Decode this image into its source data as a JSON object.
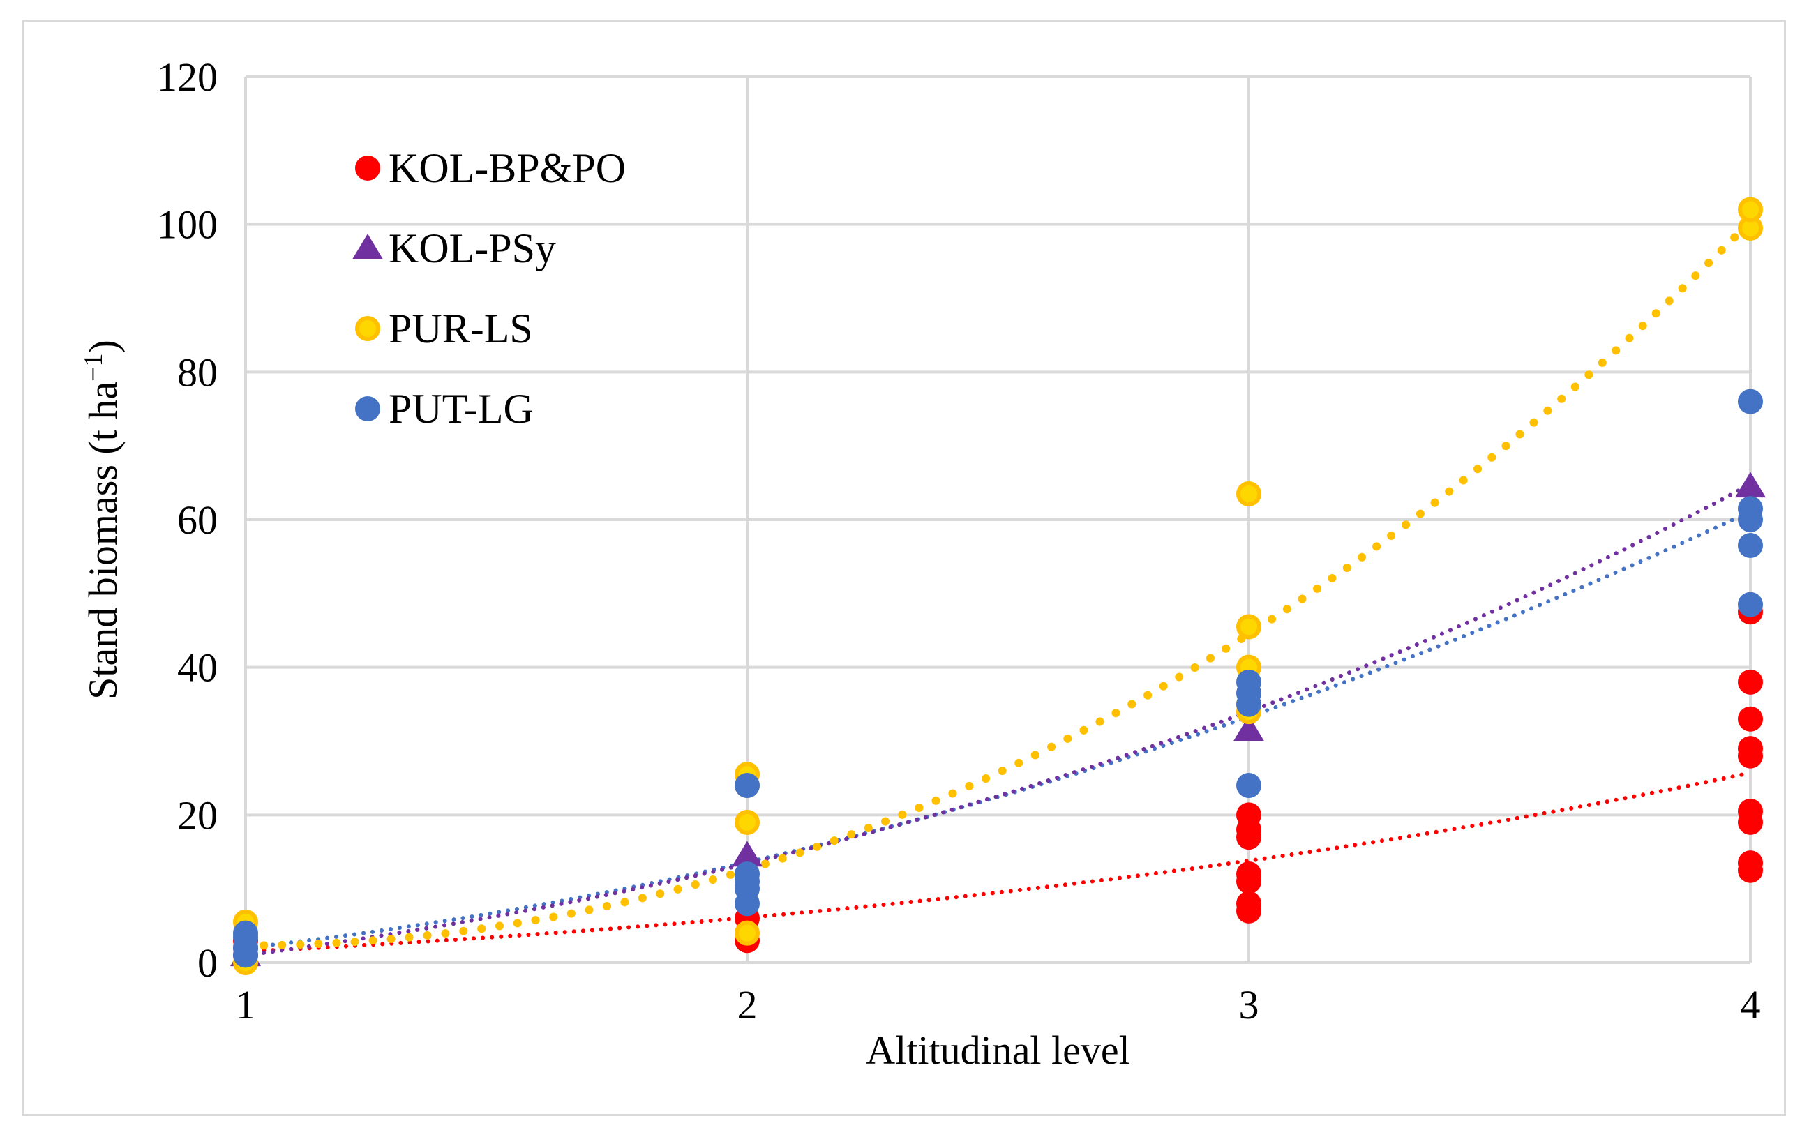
{
  "chart_data": {
    "type": "scatter",
    "title": "",
    "xlabel": "Altitudinal level",
    "ylabel_main": "Stand biomass (t ha",
    "ylabel_sup": "−1",
    "ylabel_close": ")",
    "xlim": [
      1,
      4
    ],
    "ylim": [
      0,
      120
    ],
    "xticks": [
      1,
      2,
      3,
      4
    ],
    "yticks": [
      0,
      20,
      40,
      60,
      80,
      100,
      120
    ],
    "grid": true,
    "legend_position": "top-left",
    "series": [
      {
        "name": "KOL-BP&PO",
        "marker": "circle",
        "color": "#ff0000",
        "edge_color": "#ff0000",
        "points": [
          [
            1,
            1
          ],
          [
            1,
            2
          ],
          [
            1,
            3
          ],
          [
            2,
            3
          ],
          [
            2,
            6
          ],
          [
            3,
            7
          ],
          [
            3,
            8
          ],
          [
            3,
            11
          ],
          [
            3,
            12
          ],
          [
            3,
            17
          ],
          [
            3,
            18
          ],
          [
            3,
            20
          ],
          [
            4,
            12.5
          ],
          [
            4,
            13.5
          ],
          [
            4,
            19
          ],
          [
            4,
            20.5
          ],
          [
            4,
            28
          ],
          [
            4,
            29
          ],
          [
            4,
            33
          ],
          [
            4,
            38
          ],
          [
            4,
            47.5
          ]
        ],
        "trend": [
          1.5,
          6.1,
          13.8,
          25.7
        ]
      },
      {
        "name": "KOL-PSy",
        "marker": "triangle",
        "color": "#7030a0",
        "edge_color": "#7030a0",
        "points": [
          [
            1,
            1
          ],
          [
            2,
            14.5
          ],
          [
            3,
            31.5
          ],
          [
            4,
            64.5
          ]
        ],
        "trend": [
          1.0,
          13.4,
          34.0,
          64.8
        ]
      },
      {
        "name": "PUR-LS",
        "marker": "circle",
        "color": "#ffd700",
        "edge_color": "#ffc000",
        "points": [
          [
            1,
            0
          ],
          [
            1,
            4
          ],
          [
            1,
            5.5
          ],
          [
            2,
            4
          ],
          [
            2,
            19
          ],
          [
            2,
            24
          ],
          [
            2,
            25.5
          ],
          [
            3,
            34
          ],
          [
            3,
            35
          ],
          [
            3,
            40
          ],
          [
            3,
            45.5
          ],
          [
            3,
            63.5
          ],
          [
            4,
            99.5
          ],
          [
            4,
            102
          ]
        ],
        "trend": [
          2.3,
          12.6,
          44.5,
          100.4
        ]
      },
      {
        "name": "PUT-LG",
        "marker": "circle",
        "color": "#4472c4",
        "edge_color": "#4472c4",
        "points": [
          [
            1,
            1
          ],
          [
            1,
            2
          ],
          [
            1,
            3.5
          ],
          [
            1,
            4
          ],
          [
            2,
            8
          ],
          [
            2,
            10
          ],
          [
            2,
            11
          ],
          [
            2,
            12
          ],
          [
            2,
            24
          ],
          [
            3,
            24
          ],
          [
            3,
            35
          ],
          [
            3,
            36.5
          ],
          [
            3,
            38
          ],
          [
            4,
            48.5
          ],
          [
            4,
            56.5
          ],
          [
            4,
            60
          ],
          [
            4,
            61.5
          ],
          [
            4,
            76
          ]
        ],
        "trend": [
          2.0,
          13.6,
          33.3,
          61.1
        ]
      }
    ]
  }
}
